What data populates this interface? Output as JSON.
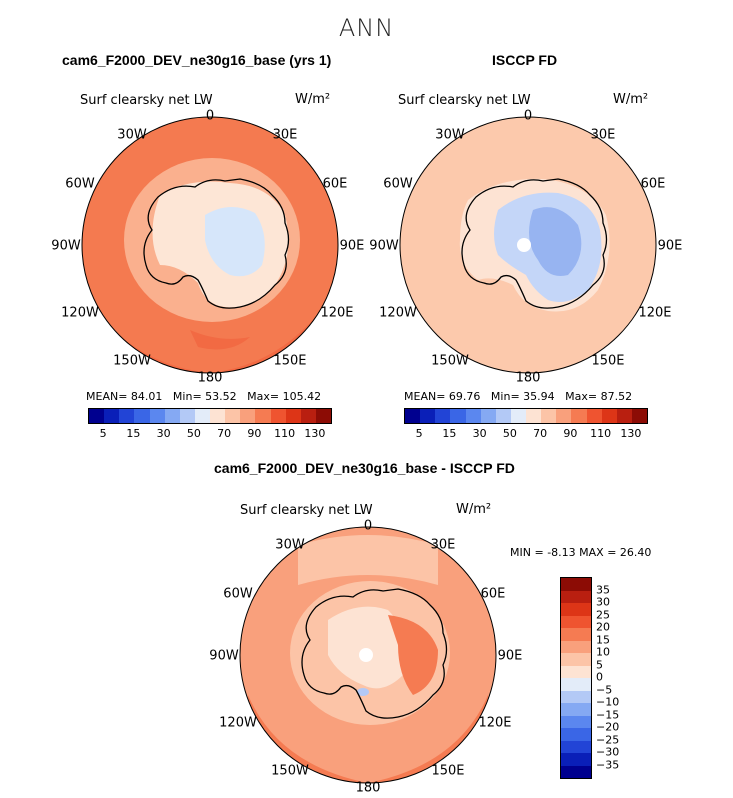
{
  "season": "ANN",
  "panels": [
    {
      "title": "cam6_F2000_DEV_ne30g16_base (yrs 1)",
      "variable": "Surf clearsky net LW",
      "units": "W/m²",
      "stats": {
        "mean_label": "MEAN=",
        "mean": "84.01",
        "min_label": "Min=",
        "min": "53.52",
        "max_label": "Max=",
        "max": "105.42"
      },
      "lon_labels": [
        "0",
        "30E",
        "60E",
        "90E",
        "120E",
        "150E",
        "180",
        "150W",
        "120W",
        "90W",
        "60W",
        "30W"
      ]
    },
    {
      "title": "ISCCP FD",
      "variable": "Surf clearsky net LW",
      "units": "W/m²",
      "stats": {
        "mean_label": "MEAN=",
        "mean": "69.76",
        "min_label": "Min=",
        "min": "35.94",
        "max_label": "Max=",
        "max": "87.52"
      },
      "lon_labels": [
        "0",
        "30E",
        "60E",
        "90E",
        "120E",
        "150E",
        "180",
        "150W",
        "120W",
        "90W",
        "60W",
        "30W"
      ]
    },
    {
      "title": "cam6_F2000_DEV_ne30g16_base - ISCCP FD",
      "variable": "Surf clearsky net LW",
      "units": "W/m²",
      "stats": {
        "min_label": "MIN =",
        "min": "-8.13",
        "max_label": "MAX =",
        "max": "26.40"
      },
      "lon_labels": [
        "0",
        "30E",
        "60E",
        "90E",
        "120E",
        "150E",
        "180",
        "150W",
        "120W",
        "90W",
        "60W",
        "30W"
      ]
    }
  ],
  "colorbar_abs": {
    "ticks": [
      "5",
      "15",
      "30",
      "50",
      "70",
      "90",
      "110",
      "130"
    ],
    "colors": [
      "#00008f",
      "#0a1fb8",
      "#2244d6",
      "#3a66e6",
      "#5b87ef",
      "#85a9f3",
      "#b3c9f6",
      "#e3ecf9",
      "#fde3d3",
      "#fcc4a7",
      "#f9a07c",
      "#f57b52",
      "#ef5430",
      "#dd3517",
      "#b91f10",
      "#8c0c05"
    ]
  },
  "colorbar_diff": {
    "ticks": [
      "35",
      "30",
      "25",
      "20",
      "15",
      "10",
      "5",
      "0",
      "−5",
      "−10",
      "−15",
      "−20",
      "−25",
      "−30",
      "−35"
    ],
    "colors": [
      "#8c0c05",
      "#b91f10",
      "#dd3517",
      "#ef5430",
      "#f57b52",
      "#f9a07c",
      "#fcc4a7",
      "#fde3d3",
      "#e3ecf9",
      "#b3c9f6",
      "#85a9f3",
      "#5b87ef",
      "#3a66e6",
      "#2244d6",
      "#0a1fb8",
      "#00008f"
    ]
  },
  "colors": {
    "model_ocean": "#f47a50",
    "model_outer": "#f26a43",
    "model_coast": "#fab08e",
    "model_interior": "#fde6d6",
    "model_plateau": "#d6e6fa",
    "obs_ocean": "#fcc9ac",
    "obs_coast": "#fde3d3",
    "obs_interior": "#c4d6f8",
    "obs_plateau": "#97b4f1",
    "diff_ocean": "#f9a07c",
    "diff_strong": "#f57b52",
    "diff_weak": "#fcc4a7",
    "diff_land": "#fde3d3"
  }
}
